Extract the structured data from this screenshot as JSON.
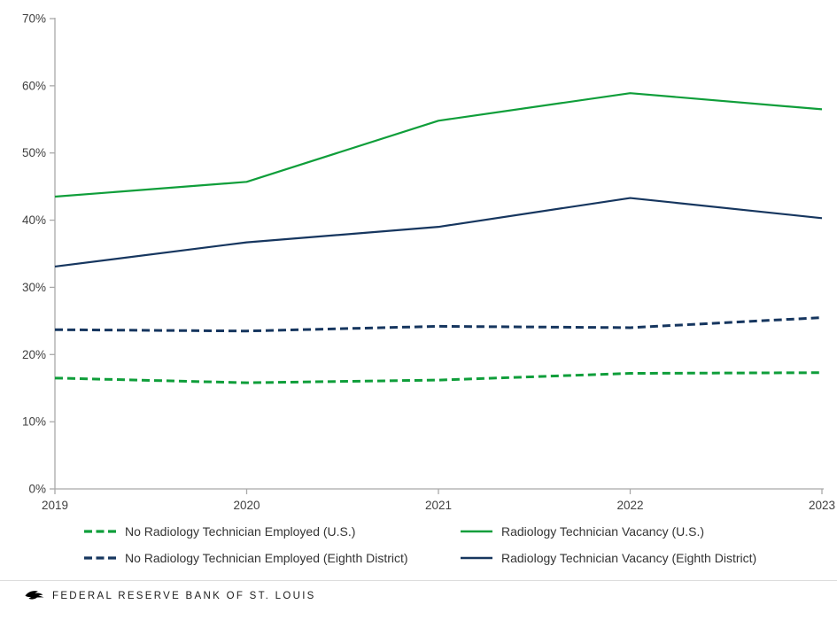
{
  "chart_data": {
    "type": "line",
    "x": [
      2019,
      2020,
      2021,
      2022,
      2023
    ],
    "x_labels": [
      "2019",
      "2020",
      "2021",
      "2022",
      "2023"
    ],
    "ylim": [
      0,
      70
    ],
    "y_tick_step": 10,
    "y_tick_suffix": "%",
    "y_tick_labels": [
      "0%",
      "10%",
      "20%",
      "30%",
      "40%",
      "50%",
      "60%",
      "70%"
    ],
    "grid": false,
    "legend_position": "bottom",
    "series": [
      {
        "name": "No Radiology Technician Employed (U.S.)",
        "color": "#0f9e3a",
        "style": "dashed",
        "values": [
          16.5,
          15.8,
          16.2,
          17.2,
          17.3
        ]
      },
      {
        "name": "Radiology Technician Vacancy (U.S.)",
        "color": "#0f9e3a",
        "style": "solid",
        "values": [
          43.5,
          45.7,
          54.8,
          58.9,
          56.5
        ]
      },
      {
        "name": "No Radiology Technician Employed (Eighth District)",
        "color": "#16365f",
        "style": "dashed",
        "values": [
          23.7,
          23.5,
          24.2,
          24.0,
          25.5
        ]
      },
      {
        "name": "Radiology Technician Vacancy (Eighth District)",
        "color": "#16365f",
        "style": "solid",
        "values": [
          33.1,
          36.7,
          39.0,
          43.3,
          40.3
        ]
      }
    ]
  },
  "footer": {
    "brand": "FEDERAL RESERVE BANK OF ST. LOUIS",
    "eagle_icon": "stl-fed-eagle"
  },
  "colors": {
    "green": "#0f9e3a",
    "navy": "#16365f",
    "axis_line": "#a9a9a9",
    "tick_text": "#404040",
    "legend_text": "#333333",
    "footer_rule": "#dcdcdc"
  }
}
